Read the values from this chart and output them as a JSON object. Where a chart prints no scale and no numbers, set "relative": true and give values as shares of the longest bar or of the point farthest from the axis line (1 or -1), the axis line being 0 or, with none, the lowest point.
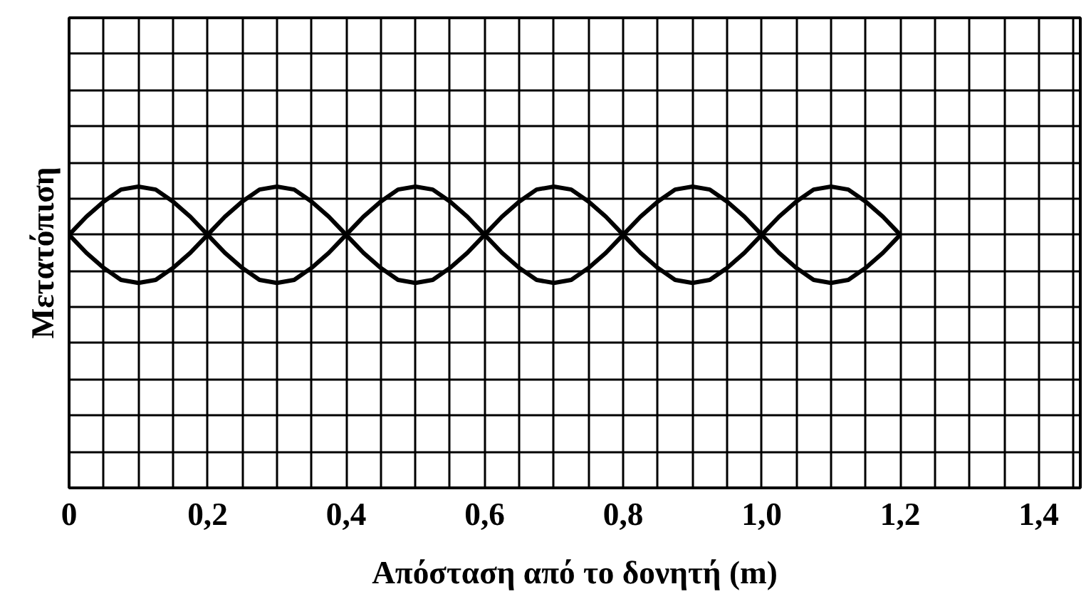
{
  "chart_data": {
    "type": "line",
    "xlabel": "Απόσταση από το δονητή (m)",
    "ylabel": "Μετατόπιση",
    "relative": true,
    "grid": true,
    "tick_labels": "x",
    "line_style": "solid",
    "marker": "none",
    "xlim": [
      0,
      1.46
    ],
    "xticks": [
      0,
      {
        "value": 0.05,
        "label": null
      },
      {
        "value": 0.1,
        "label": null
      },
      {
        "value": 0.15,
        "label": null
      },
      {
        "value": 0.2,
        "label": "0,2"
      },
      {
        "value": 0.25,
        "label": null
      },
      {
        "value": 0.3,
        "label": null
      },
      {
        "value": 0.35,
        "label": null
      },
      {
        "value": 0.4,
        "label": "0,4"
      },
      {
        "value": 0.45,
        "label": null
      },
      {
        "value": 0.5,
        "label": null
      },
      {
        "value": 0.55,
        "label": null
      },
      {
        "value": 0.6,
        "label": "0,6"
      },
      {
        "value": 0.65,
        "label": null
      },
      {
        "value": 0.7,
        "label": null
      },
      {
        "value": 0.75,
        "label": null
      },
      {
        "value": 0.8,
        "label": "0,8"
      },
      {
        "value": 0.85,
        "label": null
      },
      {
        "value": 0.9,
        "label": null
      },
      {
        "value": 0.95,
        "label": null
      },
      {
        "value": 1.0,
        "label": "1,0"
      },
      {
        "value": 1.05,
        "label": null
      },
      {
        "value": 1.1,
        "label": null
      },
      {
        "value": 1.15,
        "label": null
      },
      {
        "value": 1.2,
        "label": "1,2"
      },
      {
        "value": 1.25,
        "label": null
      },
      {
        "value": 1.3,
        "label": null
      },
      {
        "value": 1.35,
        "label": null
      },
      {
        "value": 1.4,
        "label": "1,4"
      },
      {
        "value": 1.45,
        "label": null
      }
    ],
    "x": [
      0,
      0.025,
      0.05,
      0.075,
      0.1,
      0.125,
      0.15,
      0.175,
      0.2,
      0.225,
      0.25,
      0.275,
      0.3,
      0.325,
      0.35,
      0.375,
      0.4,
      0.425,
      0.45,
      0.475,
      0.5,
      0.525,
      0.55,
      0.575,
      0.6,
      0.625,
      0.65,
      0.675,
      0.7,
      0.725,
      0.75,
      0.775,
      0.8,
      0.825,
      0.85,
      0.875,
      0.9,
      0.925,
      0.95,
      0.975,
      1.0,
      1.025,
      1.05,
      1.075,
      1.1,
      1.125,
      1.15,
      1.175,
      1.2
    ],
    "series": [
      {
        "color": "#000000",
        "values": [
          0.84,
          0.9,
          0.95,
          0.99,
          1.0,
          0.99,
          0.95,
          0.9,
          0.84,
          0.9,
          0.95,
          0.99,
          1.0,
          0.99,
          0.95,
          0.9,
          0.84,
          0.9,
          0.95,
          0.99,
          1.0,
          0.99,
          0.95,
          0.9,
          0.84,
          0.9,
          0.95,
          0.99,
          1.0,
          0.99,
          0.95,
          0.9,
          0.84,
          0.9,
          0.95,
          0.99,
          1.0,
          0.99,
          0.95,
          0.9,
          0.84,
          0.9,
          0.95,
          0.99,
          1.0,
          0.99,
          0.95,
          0.9,
          0.84
        ]
      },
      {
        "color": "#000000",
        "values": [
          0.84,
          0.78,
          0.73,
          0.69,
          0.68,
          0.69,
          0.73,
          0.78,
          0.84,
          0.78,
          0.73,
          0.69,
          0.68,
          0.69,
          0.73,
          0.78,
          0.84,
          0.78,
          0.73,
          0.69,
          0.68,
          0.69,
          0.73,
          0.78,
          0.84,
          0.78,
          0.73,
          0.69,
          0.68,
          0.69,
          0.73,
          0.78,
          0.84,
          0.78,
          0.73,
          0.69,
          0.68,
          0.69,
          0.73,
          0.78,
          0.84,
          0.78,
          0.73,
          0.69,
          0.68,
          0.69,
          0.73,
          0.78,
          0.84
        ]
      }
    ]
  }
}
